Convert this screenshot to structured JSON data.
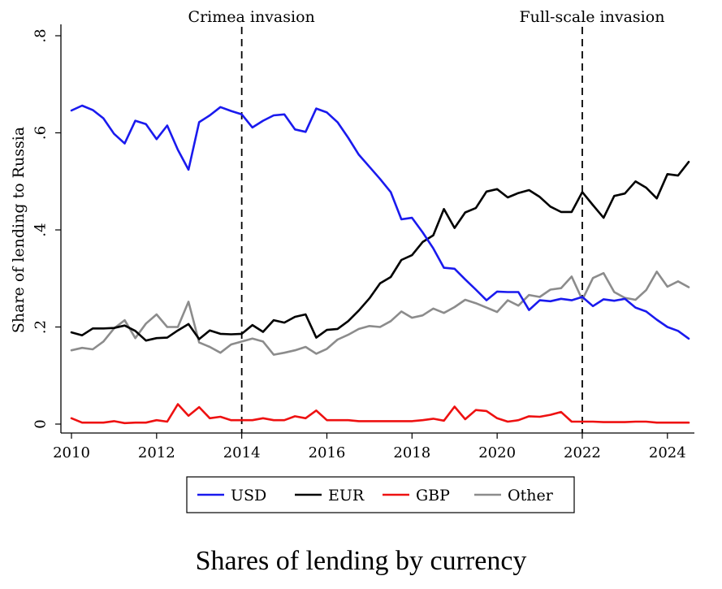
{
  "caption": "Shares of lending by currency",
  "chart_data": {
    "type": "line",
    "title": "",
    "xlabel": "",
    "ylabel": "Share of lending to Russia",
    "xlim": [
      2010,
      2024.5
    ],
    "ylim": [
      0,
      0.8
    ],
    "x_ticks": [
      2010,
      2012,
      2014,
      2016,
      2018,
      2020,
      2022,
      2024
    ],
    "x_tick_labels": [
      "2010",
      "2012",
      "2014",
      "2016",
      "2018",
      "2020",
      "2022",
      "2024"
    ],
    "y_ticks": [
      0,
      0.2,
      0.4,
      0.6,
      0.8
    ],
    "y_tick_labels": [
      "0",
      ".2",
      ".4",
      ".6",
      ".8"
    ],
    "grid": false,
    "legend_position": "bottom",
    "events": [
      {
        "x": 2014,
        "label": "Crimea invasion"
      },
      {
        "x": 2022,
        "label": "Full-scale invasion"
      }
    ],
    "x": [
      2010.0,
      2010.25,
      2010.5,
      2010.75,
      2011.0,
      2011.25,
      2011.5,
      2011.75,
      2012.0,
      2012.25,
      2012.5,
      2012.75,
      2013.0,
      2013.25,
      2013.5,
      2013.75,
      2014.0,
      2014.25,
      2014.5,
      2014.75,
      2015.0,
      2015.25,
      2015.5,
      2015.75,
      2016.0,
      2016.25,
      2016.5,
      2016.75,
      2017.0,
      2017.25,
      2017.5,
      2017.75,
      2018.0,
      2018.25,
      2018.5,
      2018.75,
      2019.0,
      2019.25,
      2019.5,
      2019.75,
      2020.0,
      2020.25,
      2020.5,
      2020.75,
      2021.0,
      2021.25,
      2021.5,
      2021.75,
      2022.0,
      2022.25,
      2022.5,
      2022.75,
      2023.0,
      2023.25,
      2023.5,
      2023.75,
      2024.0,
      2024.25,
      2024.5
    ],
    "series": [
      {
        "name": "USD",
        "color": "#1a1aee",
        "values": [
          0.646,
          0.656,
          0.647,
          0.63,
          0.598,
          0.578,
          0.625,
          0.618,
          0.587,
          0.615,
          0.565,
          0.524,
          0.622,
          0.636,
          0.653,
          0.645,
          0.638,
          0.611,
          0.625,
          0.636,
          0.638,
          0.607,
          0.602,
          0.65,
          0.642,
          0.622,
          0.59,
          0.555,
          0.53,
          0.505,
          0.478,
          0.422,
          0.425,
          0.395,
          0.362,
          0.322,
          0.32,
          0.298,
          0.277,
          0.255,
          0.273,
          0.272,
          0.272,
          0.235,
          0.255,
          0.253,
          0.258,
          0.255,
          0.262,
          0.243,
          0.257,
          0.254,
          0.258,
          0.24,
          0.232,
          0.215,
          0.2,
          0.192,
          0.176
        ]
      },
      {
        "name": "EUR",
        "color": "#000000",
        "values": [
          0.189,
          0.183,
          0.197,
          0.197,
          0.198,
          0.203,
          0.192,
          0.172,
          0.177,
          0.178,
          0.193,
          0.206,
          0.175,
          0.193,
          0.186,
          0.185,
          0.186,
          0.204,
          0.19,
          0.214,
          0.209,
          0.221,
          0.226,
          0.178,
          0.194,
          0.196,
          0.212,
          0.234,
          0.259,
          0.29,
          0.303,
          0.338,
          0.348,
          0.375,
          0.389,
          0.443,
          0.404,
          0.436,
          0.445,
          0.479,
          0.484,
          0.467,
          0.476,
          0.482,
          0.468,
          0.448,
          0.437,
          0.437,
          0.478,
          0.451,
          0.425,
          0.47,
          0.475,
          0.5,
          0.487,
          0.465,
          0.515,
          0.512,
          0.54
        ]
      },
      {
        "name": "GBP",
        "color": "#ee1111",
        "values": [
          0.012,
          0.003,
          0.003,
          0.003,
          0.006,
          0.002,
          0.003,
          0.003,
          0.008,
          0.005,
          0.041,
          0.017,
          0.035,
          0.012,
          0.015,
          0.008,
          0.008,
          0.008,
          0.012,
          0.008,
          0.008,
          0.016,
          0.012,
          0.028,
          0.008,
          0.008,
          0.008,
          0.006,
          0.006,
          0.006,
          0.006,
          0.006,
          0.006,
          0.008,
          0.011,
          0.007,
          0.036,
          0.01,
          0.029,
          0.027,
          0.012,
          0.005,
          0.008,
          0.016,
          0.015,
          0.019,
          0.025,
          0.005,
          0.005,
          0.005,
          0.004,
          0.004,
          0.004,
          0.005,
          0.005,
          0.003,
          0.003,
          0.003,
          0.003
        ]
      },
      {
        "name": "Other",
        "color": "#8c8c8c",
        "values": [
          0.152,
          0.157,
          0.154,
          0.17,
          0.197,
          0.214,
          0.177,
          0.207,
          0.226,
          0.2,
          0.2,
          0.252,
          0.168,
          0.159,
          0.147,
          0.164,
          0.17,
          0.176,
          0.17,
          0.143,
          0.147,
          0.152,
          0.159,
          0.145,
          0.155,
          0.174,
          0.184,
          0.196,
          0.202,
          0.2,
          0.212,
          0.232,
          0.219,
          0.224,
          0.238,
          0.229,
          0.241,
          0.256,
          0.249,
          0.24,
          0.231,
          0.255,
          0.244,
          0.266,
          0.262,
          0.277,
          0.28,
          0.304,
          0.256,
          0.301,
          0.311,
          0.272,
          0.26,
          0.256,
          0.276,
          0.314,
          0.283,
          0.294,
          0.282
        ]
      }
    ]
  }
}
